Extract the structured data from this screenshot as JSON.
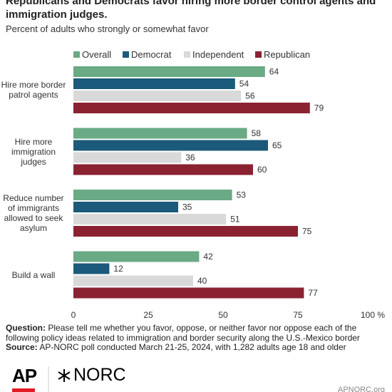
{
  "chart_data": {
    "type": "hbar",
    "title": "Republicans and Democrats favor hiring more border control agents and immigration judges.",
    "subtitle": "Percent of adults who strongly or somewhat favor",
    "categories": [
      "Hire more border patrol agents",
      "Hire more immigration judges",
      "Reduce number of immigrants allowed to seek asylum",
      "Build a wall"
    ],
    "series": [
      {
        "name": "Overall",
        "color": "#6aaa84",
        "values": [
          64,
          58,
          53,
          42
        ]
      },
      {
        "name": "Democrat",
        "color": "#1b5a7a",
        "values": [
          54,
          65,
          35,
          12
        ]
      },
      {
        "name": "Independent",
        "color": "#d9d9d9",
        "values": [
          56,
          36,
          51,
          40
        ]
      },
      {
        "name": "Republican",
        "color": "#8b2232",
        "values": [
          79,
          60,
          75,
          77
        ]
      }
    ],
    "xlim": [
      0,
      100
    ],
    "xticks": [
      0,
      25,
      50,
      75,
      {
        "value": 100,
        "label": "100 %"
      }
    ],
    "grid": false,
    "legend": "top",
    "question_label": "Question:",
    "question": "Please tell me whether you favor, oppose, or neither favor nor oppose each of the following policy ideas related to immigration and border security along the U.S.-Mexico border",
    "source_label": "Source:",
    "source": "AP-NORC poll conducted March 21-25, 2024, with 1,282 adults age 18 and older",
    "logo_ap": "AP",
    "logo_norc": "NORC",
    "url": "APNORC.org"
  }
}
